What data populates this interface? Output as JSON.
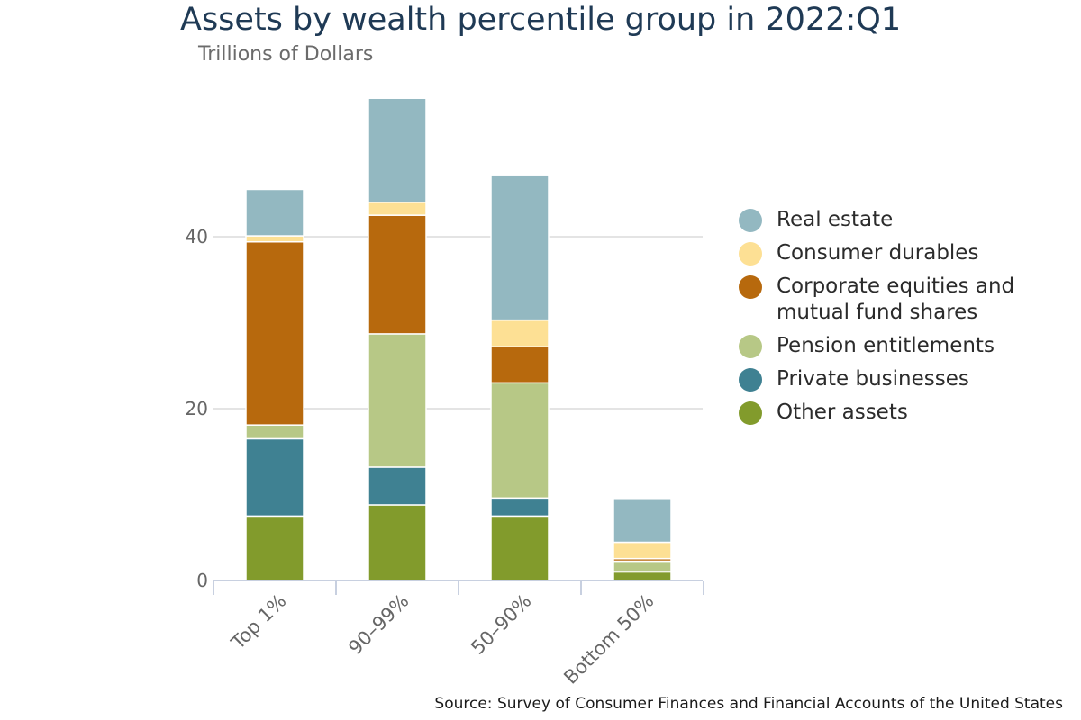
{
  "chart_data": {
    "type": "bar",
    "stacked": true,
    "title": "Assets by wealth percentile group in 2022:Q1",
    "subtitle": "Trillions of Dollars",
    "source": "Source: Survey of Consumer Finances and Financial Accounts of the United States",
    "categories": [
      "Top 1%",
      "90–99%",
      "50–90%",
      "Bottom 50%"
    ],
    "ylim": [
      0,
      56.3
    ],
    "yticks": [
      0,
      20,
      40
    ],
    "grid": true,
    "legend_position": "right",
    "series": [
      {
        "name": "Other assets",
        "color": "#829b2c",
        "values": [
          7.5,
          8.8,
          7.5,
          1.0
        ]
      },
      {
        "name": "Private businesses",
        "color": "#3f8192",
        "values": [
          9.0,
          4.4,
          2.1,
          0.05
        ]
      },
      {
        "name": "Pension entitlements",
        "color": "#b7c886",
        "values": [
          1.6,
          15.5,
          13.4,
          1.2
        ]
      },
      {
        "name": "Corporate equities and mutual fund shares",
        "color": "#b7690d",
        "values": [
          21.3,
          13.8,
          4.2,
          0.3
        ]
      },
      {
        "name": "Consumer durables",
        "color": "#fde094",
        "values": [
          0.7,
          1.5,
          3.1,
          1.9
        ]
      },
      {
        "name": "Real estate",
        "color": "#93b8c1",
        "values": [
          5.4,
          12.1,
          16.8,
          5.1
        ]
      }
    ]
  },
  "legend": {
    "items": [
      {
        "label": "Real estate",
        "color": "#93b8c1"
      },
      {
        "label": "Consumer durables",
        "color": "#fde094"
      },
      {
        "label": "Corporate equities and mutual fund shares",
        "color": "#b7690d"
      },
      {
        "label": "Pension entitlements",
        "color": "#b7c886"
      },
      {
        "label": "Private businesses",
        "color": "#3f8192"
      },
      {
        "label": "Other assets",
        "color": "#829b2c"
      }
    ]
  }
}
